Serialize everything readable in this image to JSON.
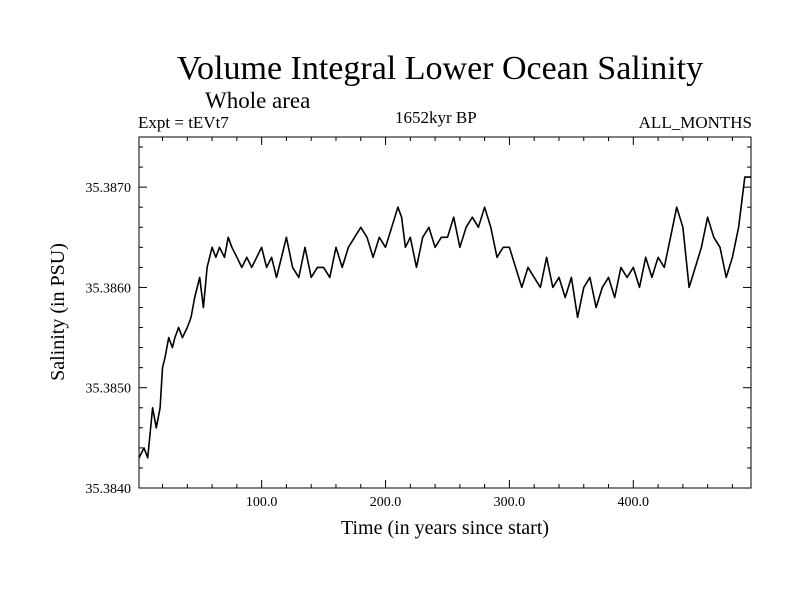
{
  "chart_data": {
    "type": "line",
    "title": "Volume Integral Lower Ocean Salinity",
    "subtitle": "Whole area",
    "annotations": {
      "experiment": "Expt = tEVt7",
      "period": "1652kyr BP",
      "months": "ALL_MONTHS"
    },
    "xlabel": "Time (in years since start)",
    "ylabel": "Salinity (in PSU)",
    "xlim": [
      1,
      495
    ],
    "ylim": [
      35.384,
      35.3875
    ],
    "x_ticks": [
      {
        "value": 100,
        "label": "100.0"
      },
      {
        "value": 200,
        "label": "200.0"
      },
      {
        "value": 300,
        "label": "300.0"
      },
      {
        "value": 400,
        "label": "400.0"
      }
    ],
    "y_ticks": [
      {
        "value": 35.384,
        "label": "35.3840"
      },
      {
        "value": 35.385,
        "label": "35.3850"
      },
      {
        "value": 35.386,
        "label": "35.3860"
      },
      {
        "value": 35.387,
        "label": "35.3870"
      }
    ],
    "series": [
      {
        "name": "Salinity",
        "color": "#000000",
        "x": [
          1,
          5,
          8,
          12,
          15,
          18,
          20,
          22,
          25,
          28,
          30,
          33,
          36,
          40,
          43,
          46,
          50,
          53,
          56,
          60,
          63,
          66,
          70,
          73,
          76,
          80,
          84,
          88,
          92,
          96,
          100,
          104,
          108,
          112,
          116,
          120,
          125,
          130,
          135,
          140,
          145,
          150,
          155,
          160,
          165,
          170,
          175,
          180,
          185,
          190,
          195,
          200,
          205,
          210,
          213,
          216,
          220,
          225,
          230,
          235,
          240,
          245,
          250,
          255,
          260,
          265,
          270,
          275,
          280,
          285,
          290,
          295,
          300,
          305,
          310,
          315,
          320,
          325,
          330,
          335,
          340,
          345,
          350,
          355,
          360,
          365,
          370,
          375,
          380,
          385,
          390,
          395,
          400,
          405,
          410,
          415,
          420,
          425,
          430,
          435,
          440,
          445,
          450,
          455,
          460,
          465,
          470,
          475,
          480,
          485,
          490,
          495
        ],
        "values": [
          35.3843,
          35.3844,
          35.3843,
          35.3848,
          35.3846,
          35.3848,
          35.3852,
          35.3853,
          35.3855,
          35.3854,
          35.3855,
          35.3856,
          35.3855,
          35.3856,
          35.3857,
          35.3859,
          35.3861,
          35.3858,
          35.3862,
          35.3864,
          35.3863,
          35.3864,
          35.3863,
          35.3865,
          35.3864,
          35.3863,
          35.3862,
          35.3863,
          35.3862,
          35.3863,
          35.3864,
          35.3862,
          35.3863,
          35.3861,
          35.3863,
          35.3865,
          35.3862,
          35.3861,
          35.3864,
          35.3861,
          35.3862,
          35.3862,
          35.3861,
          35.3864,
          35.3862,
          35.3864,
          35.3865,
          35.3866,
          35.3865,
          35.3863,
          35.3865,
          35.3864,
          35.3866,
          35.3868,
          35.3867,
          35.3864,
          35.3865,
          35.3862,
          35.3865,
          35.3866,
          35.3864,
          35.3865,
          35.3865,
          35.3867,
          35.3864,
          35.3866,
          35.3867,
          35.3866,
          35.3868,
          35.3866,
          35.3863,
          35.3864,
          35.3864,
          35.3862,
          35.386,
          35.3862,
          35.3861,
          35.386,
          35.3863,
          35.386,
          35.3861,
          35.3859,
          35.3861,
          35.3857,
          35.386,
          35.3861,
          35.3858,
          35.386,
          35.3861,
          35.3859,
          35.3862,
          35.3861,
          35.3862,
          35.386,
          35.3863,
          35.3861,
          35.3863,
          35.3862,
          35.3865,
          35.3868,
          35.3866,
          35.386,
          35.3862,
          35.3864,
          35.3867,
          35.3865,
          35.3864,
          35.3861,
          35.3863,
          35.3866,
          35.3871,
          35.3871
        ]
      }
    ],
    "grid": false,
    "legend": "none"
  }
}
